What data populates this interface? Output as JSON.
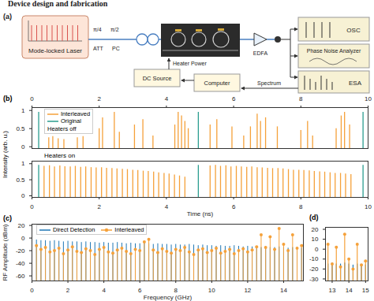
{
  "header": {
    "title": "Device design and fabrication"
  },
  "diagram": {
    "panel": "(a)",
    "nodes": {
      "laser": "Mode-locked Laser",
      "att": "ATT",
      "pc": "PC",
      "hwp": "π/4",
      "qwp": "π/2",
      "edfa": "EDFA",
      "osc": "OSC",
      "pna": "Phase Noise Analyzer",
      "esa": "ESA",
      "dc": "DC Source",
      "computer": "Computer"
    },
    "edge_labels": {
      "heater": "Heater Power",
      "spectrum": "Spectrum"
    }
  },
  "chart_data": [
    {
      "panel": "(b)",
      "type": "stem",
      "annotation": "Heaters off",
      "ylabel": "Intensity (arb. u.)",
      "xlim": [
        0,
        10
      ],
      "xticks": [
        0,
        2,
        4,
        6,
        8,
        10
      ],
      "ylim": [
        -0.05,
        1.08
      ],
      "yticks": [
        0,
        0.5,
        1
      ],
      "legend": "top-left",
      "series": [
        {
          "name": "Interleaved",
          "color": "#f5a13a",
          "x": [
            0.5,
            0.62,
            0.78,
            0.95,
            1.35,
            1.52,
            2.0,
            2.1,
            2.45,
            2.6,
            3.05,
            3.3,
            3.6,
            4.25,
            4.35,
            4.45,
            4.55,
            4.65,
            5.3,
            5.5,
            5.95,
            6.3,
            6.5,
            6.7,
            6.8,
            6.95,
            7.3,
            8.0,
            8.2,
            8.35,
            9.05,
            9.2,
            9.3,
            9.45
          ],
          "values": [
            0.25,
            0.28,
            0.22,
            0.2,
            0.25,
            0.28,
            0.5,
            0.8,
            0.95,
            0.4,
            0.6,
            0.75,
            0.3,
            0.6,
            0.95,
            0.85,
            0.7,
            0.5,
            0.6,
            0.75,
            0.55,
            0.3,
            0.55,
            0.9,
            0.7,
            0.8,
            0.55,
            0.45,
            0.7,
            0.3,
            0.5,
            0.85,
            0.95,
            0.6
          ]
        },
        {
          "name": "Original",
          "color": "#2a9d8f",
          "x": [
            0.2,
            4.95,
            9.85
          ],
          "values": [
            0.95,
            0.95,
            0.95
          ]
        }
      ]
    },
    {
      "type": "stem",
      "annotation": "Heaters on",
      "xlabel": "Time (ns)",
      "xlim": [
        0,
        10
      ],
      "xticks": [
        0,
        2,
        4,
        6,
        8,
        10
      ],
      "ylim": [
        -0.05,
        1.08
      ],
      "yticks": [
        0,
        0.5,
        1
      ],
      "series": [
        {
          "name": "Interleaved",
          "color": "#f5a13a",
          "x": [
            0.36,
            0.52,
            0.67,
            0.83,
            0.98,
            1.14,
            1.29,
            1.45,
            1.6,
            1.76,
            1.91,
            2.07,
            2.22,
            2.38,
            2.53,
            2.69,
            2.84,
            3,
            3.15,
            3.31,
            3.46,
            3.62,
            3.77,
            3.93,
            4.08,
            4.24,
            4.39,
            4.55,
            5.3,
            5.46,
            5.61,
            5.77,
            5.92,
            6.08,
            6.23,
            6.39,
            6.54,
            6.7,
            6.85,
            7.01,
            7.16,
            7.32,
            7.47,
            7.63,
            7.78,
            7.94,
            8.09,
            8.25,
            8.4,
            8.56,
            8.71,
            8.87,
            9.02,
            9.18,
            9.33,
            9.49
          ],
          "values": [
            0.92,
            0.94,
            0.9,
            0.93,
            0.91,
            0.9,
            0.92,
            0.89,
            0.9,
            0.88,
            0.87,
            0.88,
            0.86,
            0.85,
            0.84,
            0.83,
            0.82,
            0.8,
            0.79,
            0.77,
            0.76,
            0.74,
            0.72,
            0.7,
            0.68,
            0.65,
            0.62,
            0.58,
            0.93,
            0.95,
            0.92,
            0.94,
            0.9,
            0.92,
            0.9,
            0.89,
            0.9,
            0.88,
            0.87,
            0.86,
            0.85,
            0.85,
            0.84,
            0.82,
            0.8,
            0.8,
            0.79,
            0.78,
            0.76,
            0.75,
            0.74,
            0.72,
            0.7,
            0.7,
            0.68,
            0.66
          ]
        },
        {
          "name": "Original",
          "color": "#2a9d8f",
          "x": [
            0.2,
            4.95,
            9.85
          ],
          "values": [
            0.95,
            0.95,
            0.95
          ]
        }
      ]
    },
    {
      "panel": "(c)",
      "type": "stem",
      "xlabel": "Frequency (GHz)",
      "ylabel": "RF Amplitude (dBm)",
      "xlim": [
        0,
        15.1
      ],
      "xticks": [
        0,
        2,
        4,
        6,
        8,
        10,
        12,
        14
      ],
      "ylim": [
        -68,
        22
      ],
      "yticks": [
        -60,
        -40,
        -20,
        0,
        20
      ],
      "legend": "top-left",
      "series": [
        {
          "name": "Direct Detection",
          "color": "#1f77b4",
          "x": [
            0.25,
            0.5,
            0.75,
            1,
            1.25,
            1.5,
            1.75,
            2,
            2.25,
            2.5,
            2.75,
            3,
            3.25,
            3.5,
            3.75,
            4,
            4.25,
            4.5,
            4.75,
            5,
            5.25,
            5.5,
            5.75,
            6,
            6.25,
            6.5,
            6.75,
            7,
            7.25,
            7.5,
            7.75,
            8,
            8.25,
            8.5,
            8.75,
            9,
            9.25,
            9.5,
            9.75,
            10,
            10.25,
            10.5,
            10.75,
            11,
            11.25,
            11.5,
            11.75,
            12,
            12.25,
            12.5,
            12.75,
            13,
            13.25,
            13.5,
            13.75,
            14,
            14.25,
            14.5,
            14.75,
            15
          ],
          "values": [
            -3,
            -4,
            -4,
            -5,
            -4,
            -5,
            -6,
            -5,
            -6,
            -6,
            -7,
            -6,
            -7,
            -7,
            -8,
            -7,
            -8,
            -8,
            -7,
            -8,
            -9,
            -8,
            -9,
            -9,
            -8,
            -9,
            -10,
            -9,
            -10,
            -10,
            -11,
            -10,
            -11,
            -11,
            -10,
            -11,
            -12,
            -11,
            -12,
            -12,
            -13,
            -12,
            -13,
            -13,
            -12,
            -13,
            -14,
            -13,
            -14,
            -14,
            -15,
            -14,
            -15,
            -15,
            -14,
            -15,
            -16,
            -15,
            -16,
            -16
          ]
        },
        {
          "name": "Interleaved",
          "color": "#f5a13a",
          "marker": "circle",
          "x": [
            0.25,
            0.5,
            0.75,
            1,
            1.25,
            1.5,
            1.75,
            2,
            2.25,
            2.5,
            2.75,
            3,
            3.25,
            3.5,
            3.75,
            4,
            4.25,
            4.5,
            4.75,
            5,
            5.25,
            5.5,
            5.75,
            6,
            6.25,
            6.5,
            6.75,
            7,
            7.25,
            7.5,
            7.75,
            8,
            8.25,
            8.5,
            8.75,
            9,
            9.25,
            9.5,
            9.75,
            10,
            10.25,
            10.5,
            10.75,
            11,
            11.25,
            11.5,
            11.75,
            12,
            12.25,
            12.5,
            12.75,
            13,
            13.25,
            13.5,
            13.75,
            14,
            14.25,
            14.5,
            14.75,
            15
          ],
          "values": [
            -12,
            -18,
            -15,
            -22,
            -20,
            -16,
            -25,
            -19,
            -14,
            -21,
            -23,
            -17,
            -20,
            -26,
            -18,
            -15,
            -22,
            -24,
            -19,
            -16,
            -21,
            -25,
            -18,
            -20,
            -6,
            -2,
            -19,
            -23,
            -17,
            -21,
            -24,
            -18,
            -20,
            -15,
            -22,
            -26,
            -19,
            -17,
            -23,
            -20,
            -16,
            -24,
            -21,
            -18,
            -25,
            -20,
            -17,
            -22,
            -19,
            -14,
            5,
            -15,
            2,
            -18,
            15,
            -10,
            -20,
            5,
            -16,
            -12
          ]
        }
      ]
    },
    {
      "panel": "(d)",
      "type": "stem",
      "xlim": [
        12.6,
        15.15
      ],
      "xticks": [
        13,
        14,
        15
      ],
      "ylim": [
        -32,
        22
      ],
      "yticks": [
        -30,
        -20,
        -10,
        0,
        10,
        20
      ],
      "series": [
        {
          "name": "Direct Detection",
          "color": "#1f77b4",
          "x": [
            12.75,
            13,
            13.25,
            13.5,
            13.75,
            14,
            14.25,
            14.5,
            14.75,
            15
          ],
          "values": [
            -15,
            -14,
            -15,
            -15,
            -14,
            -15,
            -16,
            -15,
            -16,
            -16
          ]
        },
        {
          "name": "Interleaved",
          "color": "#f5a13a",
          "marker": "circle",
          "x": [
            12.75,
            13,
            13.25,
            13.5,
            13.75,
            14,
            14.25,
            14.5,
            14.75,
            15
          ],
          "values": [
            5,
            -15,
            2,
            -18,
            15,
            -10,
            -20,
            5,
            -16,
            -12
          ]
        }
      ]
    }
  ]
}
